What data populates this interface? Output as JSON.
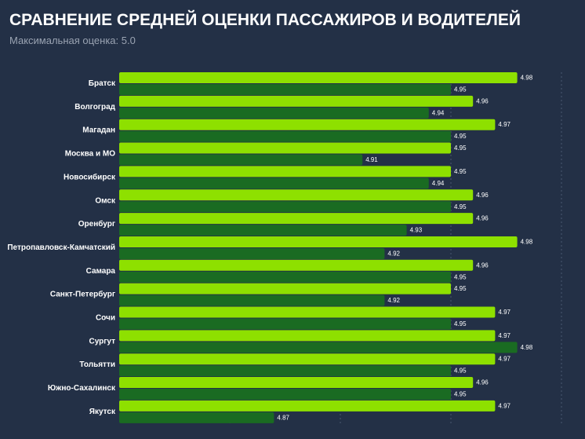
{
  "chart_data": {
    "type": "bar",
    "orientation": "horizontal",
    "title": "СРАВНЕНИЕ СРЕДНЕЙ ОЦЕНКИ ПАССАЖИРОВ И ВОДИТЕЛЕЙ",
    "subtitle": "Максимальная оценка: 5.0",
    "categories": [
      "Братск",
      "Волгоград",
      "Магадан",
      "Москва и МО",
      "Новосибирск",
      "Омск",
      "Оренбург",
      "Петропавловск-Камчатский",
      "Самара",
      "Санкт-Петербург",
      "Сочи",
      "Сургут",
      "Тольятти",
      "Южно-Сахалинск",
      "Якутск"
    ],
    "series": [
      {
        "values": [
          4.98,
          4.96,
          4.97,
          4.95,
          4.95,
          4.96,
          4.96,
          4.98,
          4.96,
          4.95,
          4.97,
          4.97,
          4.97,
          4.96,
          4.97
        ],
        "color": "#8ee000"
      },
      {
        "values": [
          4.95,
          4.94,
          4.95,
          4.91,
          4.94,
          4.95,
          4.93,
          4.92,
          4.95,
          4.92,
          4.95,
          4.98,
          4.95,
          4.95,
          4.87
        ],
        "color": "#1a6b22"
      }
    ],
    "xlim": [
      4.8,
      5.0
    ],
    "grid": true,
    "legend": "none",
    "background": "#233046"
  }
}
